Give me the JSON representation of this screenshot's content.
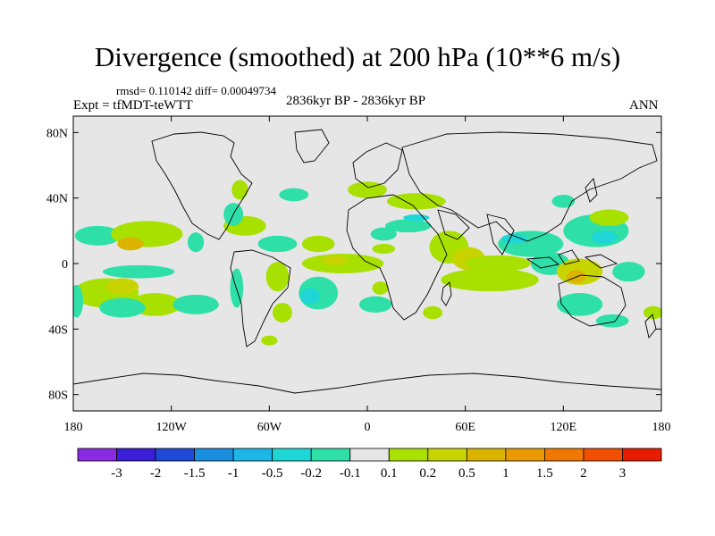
{
  "chart_data": {
    "type": "heatmap",
    "title": "Divergence (smoothed) at 200 hPa (10**6 m/s)",
    "stats_text": "rmsd= 0.110142  diff= 0.00049734",
    "left_label": "Expt = tfMDT-teWTT",
    "center_label": "2836kyr BP - 2836kyr BP",
    "right_label": "ANN",
    "x_range": [
      -180,
      180
    ],
    "y_range": [
      -90,
      90
    ],
    "x_ticks": [
      {
        "value": -180,
        "label": "180"
      },
      {
        "value": -120,
        "label": "120W"
      },
      {
        "value": -60,
        "label": "60W"
      },
      {
        "value": 0,
        "label": "0"
      },
      {
        "value": 60,
        "label": "60E"
      },
      {
        "value": 120,
        "label": "120E"
      },
      {
        "value": 180,
        "label": "180"
      }
    ],
    "y_ticks": [
      {
        "value": 80,
        "label": "80N"
      },
      {
        "value": 40,
        "label": "40N"
      },
      {
        "value": 0,
        "label": "0"
      },
      {
        "value": -40,
        "label": "40S"
      },
      {
        "value": -80,
        "label": "80S"
      }
    ],
    "colorbar": {
      "colors": [
        "#8a2be2",
        "#3a1fd6",
        "#1f4ad6",
        "#1a8fe0",
        "#1cb7e6",
        "#1fd6d6",
        "#2ee0a8",
        "#e6e6e6",
        "#a8e000",
        "#c8d400",
        "#dcb400",
        "#e89a00",
        "#f07800",
        "#f05000",
        "#e81c00"
      ],
      "labels": [
        "-3",
        "-2",
        "-1.5",
        "-1",
        "-0.5",
        "-0.2",
        "-0.1",
        "0.1",
        "0.2",
        "0.5",
        "1",
        "1.5",
        "2",
        "3"
      ]
    },
    "regions": [
      {
        "lon": -165,
        "lat": 17,
        "rx": 14,
        "ry": 6,
        "color": "#2ee0a8"
      },
      {
        "lon": -135,
        "lat": 18,
        "rx": 22,
        "ry": 8,
        "color": "#a8e000"
      },
      {
        "lon": -145,
        "lat": 12,
        "rx": 8,
        "ry": 4,
        "color": "#dcb400"
      },
      {
        "lon": -160,
        "lat": -18,
        "rx": 20,
        "ry": 9,
        "color": "#a8e000"
      },
      {
        "lon": -150,
        "lat": -14,
        "rx": 10,
        "ry": 5,
        "color": "#c8d400"
      },
      {
        "lon": -130,
        "lat": -25,
        "rx": 16,
        "ry": 7,
        "color": "#a8e000"
      },
      {
        "lon": -150,
        "lat": -27,
        "rx": 14,
        "ry": 6,
        "color": "#2ee0a8"
      },
      {
        "lon": -105,
        "lat": -25,
        "rx": 14,
        "ry": 6,
        "color": "#2ee0a8"
      },
      {
        "lon": -140,
        "lat": -5,
        "rx": 22,
        "ry": 4,
        "color": "#2ee0a8"
      },
      {
        "lon": -178,
        "lat": -23,
        "rx": 4,
        "ry": 10,
        "color": "#2ee0a8"
      },
      {
        "lon": -105,
        "lat": 13,
        "rx": 5,
        "ry": 6,
        "color": "#2ee0a8"
      },
      {
        "lon": -80,
        "lat": -15,
        "rx": 4,
        "ry": 12,
        "color": "#2ee0a8"
      },
      {
        "lon": -75,
        "lat": 23,
        "rx": 13,
        "ry": 6,
        "color": "#a8e000"
      },
      {
        "lon": -82,
        "lat": 30,
        "rx": 6,
        "ry": 7,
        "color": "#2ee0a8"
      },
      {
        "lon": -55,
        "lat": 12,
        "rx": 12,
        "ry": 5,
        "color": "#2ee0a8"
      },
      {
        "lon": -30,
        "lat": 12,
        "rx": 10,
        "ry": 5,
        "color": "#a8e000"
      },
      {
        "lon": -55,
        "lat": -8,
        "rx": 7,
        "ry": 9,
        "color": "#a8e000"
      },
      {
        "lon": -52,
        "lat": -30,
        "rx": 6,
        "ry": 6,
        "color": "#a8e000"
      },
      {
        "lon": -60,
        "lat": -47,
        "rx": 5,
        "ry": 3,
        "color": "#a8e000"
      },
      {
        "lon": -15,
        "lat": 0,
        "rx": 25,
        "ry": 6,
        "color": "#a8e000"
      },
      {
        "lon": -20,
        "lat": 2,
        "rx": 8,
        "ry": 3,
        "color": "#c8d400"
      },
      {
        "lon": -30,
        "lat": -18,
        "rx": 12,
        "ry": 10,
        "color": "#2ee0a8"
      },
      {
        "lon": -35,
        "lat": -20,
        "rx": 6,
        "ry": 5,
        "color": "#1fd6d6"
      },
      {
        "lon": 5,
        "lat": -25,
        "rx": 10,
        "ry": 5,
        "color": "#2ee0a8"
      },
      {
        "lon": 10,
        "lat": 18,
        "rx": 8,
        "ry": 4,
        "color": "#2ee0a8"
      },
      {
        "lon": -78,
        "lat": 45,
        "rx": 5,
        "ry": 6,
        "color": "#a8e000"
      },
      {
        "lon": -45,
        "lat": 42,
        "rx": 9,
        "ry": 4,
        "color": "#2ee0a8"
      },
      {
        "lon": 0,
        "lat": 45,
        "rx": 12,
        "ry": 5,
        "color": "#a8e000"
      },
      {
        "lon": 30,
        "lat": 38,
        "rx": 18,
        "ry": 5,
        "color": "#a8e000"
      },
      {
        "lon": 25,
        "lat": 23,
        "rx": 14,
        "ry": 4,
        "color": "#2ee0a8"
      },
      {
        "lon": 30,
        "lat": 28,
        "rx": 8,
        "ry": 2,
        "color": "#1fd6d6"
      },
      {
        "lon": 10,
        "lat": 9,
        "rx": 7,
        "ry": 3,
        "color": "#a8e000"
      },
      {
        "lon": 50,
        "lat": 10,
        "rx": 12,
        "ry": 10,
        "color": "#a8e000"
      },
      {
        "lon": 62,
        "lat": 3,
        "rx": 10,
        "ry": 7,
        "color": "#c8d400"
      },
      {
        "lon": 75,
        "lat": -10,
        "rx": 30,
        "ry": 7,
        "color": "#a8e000"
      },
      {
        "lon": 80,
        "lat": 0,
        "rx": 20,
        "ry": 5,
        "color": "#a8e000"
      },
      {
        "lon": 100,
        "lat": 12,
        "rx": 20,
        "ry": 8,
        "color": "#2ee0a8"
      },
      {
        "lon": 90,
        "lat": 15,
        "rx": 8,
        "ry": 3,
        "color": "#1fd6d6"
      },
      {
        "lon": 140,
        "lat": 20,
        "rx": 20,
        "ry": 10,
        "color": "#2ee0a8"
      },
      {
        "lon": 145,
        "lat": 16,
        "rx": 8,
        "ry": 4,
        "color": "#1fd6d6"
      },
      {
        "lon": 148,
        "lat": 28,
        "rx": 12,
        "ry": 5,
        "color": "#a8e000"
      },
      {
        "lon": 112,
        "lat": 0,
        "rx": 12,
        "ry": 7,
        "color": "#2ee0a8"
      },
      {
        "lon": 130,
        "lat": -5,
        "rx": 14,
        "ry": 8,
        "color": "#c8d400"
      },
      {
        "lon": 128,
        "lat": -8,
        "rx": 6,
        "ry": 4,
        "color": "#dcb400"
      },
      {
        "lon": 160,
        "lat": -5,
        "rx": 10,
        "ry": 6,
        "color": "#2ee0a8"
      },
      {
        "lon": 130,
        "lat": -25,
        "rx": 14,
        "ry": 7,
        "color": "#2ee0a8"
      },
      {
        "lon": 150,
        "lat": -35,
        "rx": 10,
        "ry": 4,
        "color": "#2ee0a8"
      },
      {
        "lon": 175,
        "lat": -30,
        "rx": 6,
        "ry": 4,
        "color": "#a8e000"
      },
      {
        "lon": 120,
        "lat": 38,
        "rx": 7,
        "ry": 4,
        "color": "#2ee0a8"
      },
      {
        "lon": 40,
        "lat": -30,
        "rx": 6,
        "ry": 4,
        "color": "#a8e000"
      },
      {
        "lon": 8,
        "lat": -15,
        "rx": 5,
        "ry": 4,
        "color": "#a8e000"
      }
    ]
  }
}
